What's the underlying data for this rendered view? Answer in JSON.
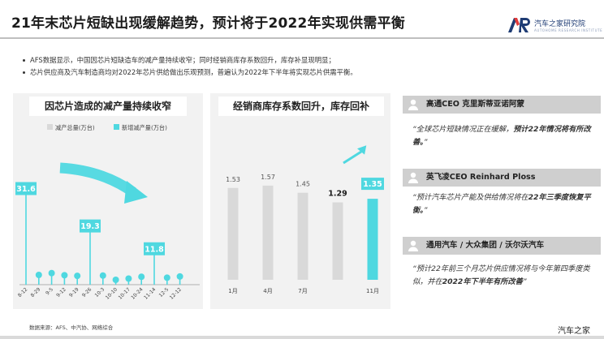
{
  "title": "21年末芯片短缺出现缓解趋势，预计将于2022年实现供需平衡",
  "logo": {
    "cn": "汽车之家研究院",
    "en": "AUTOHOME RESEARCH INSTITUTE",
    "mark": "AR"
  },
  "bullets": [
    "AFS数据显示，中国因芯片短缺造车的减产量持续收窄；同时经销商库存系数回升，库存补显现明显；",
    "芯片供应商及汽车制造商均对2022年芯片供给做出乐观预测，普遍认为2022年下半年将实现芯片供需平衡。"
  ],
  "watermark": "汽车之家研究院",
  "colors": {
    "teal": "#4fd8e0",
    "gray_bar": "#d9d9d9",
    "dark_label": "#404040"
  },
  "chart_data": [
    {
      "type": "bar",
      "title": "因芯片造成的减产量持续收窄",
      "legend": [
        "减产总量(万台)",
        "新增减产量(万台)"
      ],
      "categories": [
        "8-12",
        "8-29",
        "9-5",
        "9-12",
        "9-19",
        "9-26",
        "10-3",
        "10-10",
        "10-17",
        "10-24",
        "11-14",
        "12-5",
        "12-12"
      ],
      "series": [
        {
          "name": "减产总量(万台)",
          "values": [
            null,
            null,
            null,
            null,
            null,
            null,
            null,
            null,
            null,
            null,
            null,
            null,
            null
          ]
        },
        {
          "name": "新增减产量(万台)",
          "values": [
            31.6,
            3.2,
            3.8,
            3.1,
            2.9,
            19.3,
            3.0,
            1.6,
            2.0,
            2.6,
            11.8,
            2.3,
            2.7
          ]
        }
      ],
      "data_labels": [
        31.6,
        19.3,
        11.8
      ],
      "ylim": [
        0,
        40
      ]
    },
    {
      "type": "bar",
      "title": "经销商库存系数回升，库存回补",
      "categories": [
        "1月",
        "4月",
        "7月",
        "",
        "11月"
      ],
      "series": [
        {
          "name": "库存系数",
          "values": [
            1.53,
            1.57,
            1.45,
            1.29,
            1.35
          ]
        }
      ],
      "data_labels": [
        "1.53",
        "1.57",
        "1.45",
        "1.29",
        "1.35"
      ],
      "ylim": [
        0,
        2.0
      ]
    }
  ],
  "people": [
    {
      "name": "高通CEO 克里斯蒂亚诺阿蒙",
      "quote_plain": "“全球芯片短缺情况正在缓解，",
      "quote_bold": "预计22年情况将有所改善。",
      "quote_end": "”"
    },
    {
      "name": "英飞凌CEO Reinhard Ploss",
      "quote_plain": "“预计汽车芯片产能及供给情况将在",
      "quote_bold": "22年三季度恢复平衡。",
      "quote_end": "”"
    },
    {
      "name": "通用汽车 / 大众集团 / 沃尔沃汽车",
      "quote_plain": "“预计22年前三个月芯片供应情况将与今年第四季度类似，并在",
      "quote_bold": "2022年下半年有所改善",
      "quote_end": "”"
    }
  ],
  "footer": {
    "source": "数据来源：AFS、中汽协、网络综合",
    "brand": "汽车之家"
  }
}
